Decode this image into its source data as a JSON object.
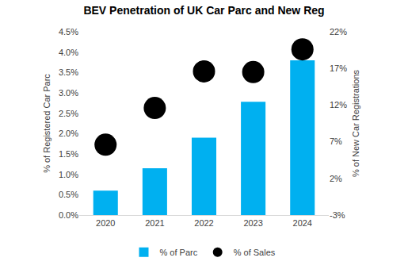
{
  "chart_data": {
    "type": "bar",
    "title": "BEV Penetration of UK Car Parc and New Reg",
    "y_label": "% of Registered Car Parc",
    "y2_label": "% of New Car Registrations",
    "categories": [
      "2020",
      "2021",
      "2022",
      "2023",
      "2024"
    ],
    "series": [
      {
        "name": "% of Parc",
        "type": "bar",
        "color": "#00b0f0",
        "values": [
          0.6,
          1.15,
          1.9,
          2.78,
          3.8
        ]
      },
      {
        "name": "% of Sales",
        "type": "scatter",
        "marker": "circle",
        "color": "#000000",
        "axis": "y2",
        "values": [
          6.6,
          11.6,
          16.6,
          16.5,
          19.6
        ]
      }
    ],
    "ylim": [
      0,
      4.5
    ],
    "yticks": [
      {
        "value": 0,
        "label": "0.0%"
      },
      {
        "value": 0.5,
        "label": "0.5%"
      },
      {
        "value": 1,
        "label": "1.0%"
      },
      {
        "value": 1.5,
        "label": "1.5%"
      },
      {
        "value": 2,
        "label": "2.0%"
      },
      {
        "value": 2.5,
        "label": "2.5%"
      },
      {
        "value": 3,
        "label": "3.0%"
      },
      {
        "value": 3.5,
        "label": "3.5%"
      },
      {
        "value": 4,
        "label": "4.0%"
      },
      {
        "value": 4.5,
        "label": "4.5%"
      }
    ],
    "y2lim": [
      -3,
      22
    ],
    "y2ticks": [
      {
        "value": -3,
        "label": "-3%"
      },
      {
        "value": 2,
        "label": "2%"
      },
      {
        "value": 7,
        "label": "7%"
      },
      {
        "value": 12,
        "label": "12%"
      },
      {
        "value": 17,
        "label": "17%"
      },
      {
        "value": 22,
        "label": "22%"
      }
    ],
    "grid": false,
    "legend": "bottom"
  }
}
